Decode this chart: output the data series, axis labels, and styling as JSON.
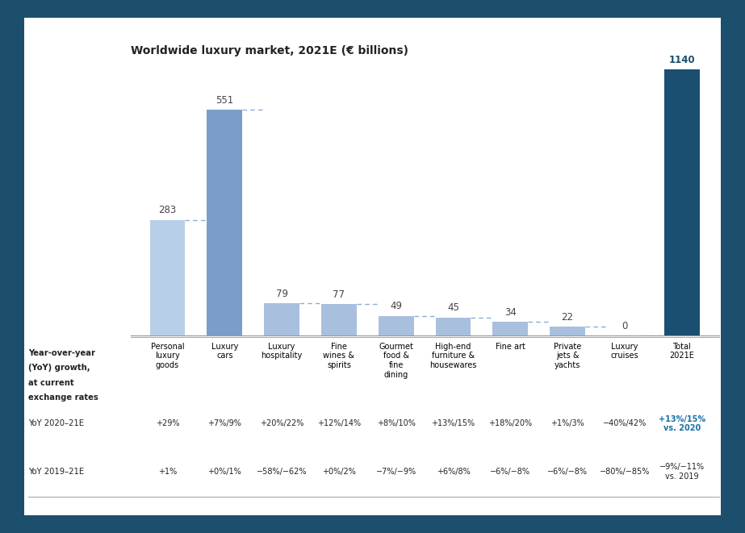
{
  "title": "Worldwide luxury market, 2021E (€ billions)",
  "categories": [
    "Personal\nluxury\ngoods",
    "Luxury\ncars",
    "Luxury\nhospitality",
    "Fine\nwines &\nspirits",
    "Gourmet\nfood &\nfine\ndining",
    "High-end\nfurniture &\nhousewares",
    "Fine art",
    "Private\njets &\nyachts",
    "Luxury\ncruises",
    "Total\n2021E"
  ],
  "values": [
    283,
    551,
    79,
    77,
    49,
    45,
    34,
    22,
    0,
    1140
  ],
  "bar_colors": [
    "#b8cfe8",
    "#7b9ec8",
    "#a8c0de",
    "#a8c0de",
    "#a8c0de",
    "#a8c0de",
    "#a8c0de",
    "#a8c0de",
    "#a8c0de",
    "#1a4f72"
  ],
  "yoy_2020_21": [
    "+29%",
    "+7%/9%",
    "+20%/22%",
    "+12%/14%",
    "+8%/10%",
    "+13%/15%",
    "+18%/20%",
    "+1%/3%",
    "−40%/42%",
    "+13%/15%\nvs. 2020"
  ],
  "yoy_2019_21": [
    "+1%",
    "+0%/1%",
    "−58%/−62%",
    "+0%/2%",
    "−7%/−9%",
    "+6%/8%",
    "−6%/−8%",
    "−6%/−8%",
    "−80%/−85%",
    "−9%/−11%\nvs. 2019"
  ],
  "yoy_2020_color_last": "#1a6fa8",
  "border_color": "#1a4f72",
  "background": "#ffffff",
  "outer_bg": "#1c4f6e",
  "ylim": 650,
  "label_color_last": "#1a4f72",
  "label_color_default": "#444444"
}
